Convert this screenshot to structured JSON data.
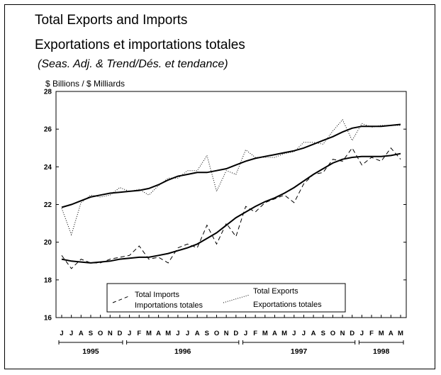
{
  "chart_data": {
    "type": "line",
    "title": "Total Exports and Imports",
    "subtitle": "Exportations et importations totales",
    "note": "(Seas. Adj. & Trend/Dés. et tendance)",
    "ylabel": "$ Billions / $ Milliards",
    "ylim": [
      16,
      28
    ],
    "yticks": [
      16,
      18,
      20,
      22,
      24,
      26,
      28
    ],
    "grid": false,
    "legend_position": "bottom-left",
    "month_labels": [
      "J",
      "J",
      "A",
      "S",
      "O",
      "N",
      "D",
      "J",
      "F",
      "M",
      "A",
      "M",
      "J",
      "J",
      "A",
      "S",
      "O",
      "N",
      "D",
      "J",
      "F",
      "M",
      "A",
      "M",
      "J",
      "J",
      "A",
      "S",
      "O",
      "N",
      "D",
      "J",
      "F",
      "M",
      "A",
      "M"
    ],
    "year_labels": [
      "1995",
      "1996",
      "1997",
      "1998"
    ],
    "year_ranges": [
      [
        0,
        6
      ],
      [
        7,
        18
      ],
      [
        19,
        30
      ],
      [
        31,
        35
      ]
    ],
    "series": [
      {
        "name": "Total Imports",
        "name_fr": "Importations totales",
        "style": "dashed",
        "kind": "actual",
        "values": [
          19.3,
          18.6,
          19.1,
          18.9,
          18.9,
          19.1,
          19.2,
          19.3,
          19.8,
          19.1,
          19.2,
          18.9,
          19.7,
          19.9,
          19.7,
          20.9,
          19.9,
          21.0,
          20.3,
          21.9,
          21.6,
          22.1,
          22.3,
          22.5,
          22.1,
          23.1,
          23.6,
          23.7,
          24.4,
          24.3,
          25.0,
          24.1,
          24.5,
          24.3,
          25.0,
          24.4
        ]
      },
      {
        "name": "",
        "style": "solid",
        "kind": "trend",
        "values": [
          19.1,
          19.0,
          18.95,
          18.9,
          18.95,
          19.0,
          19.1,
          19.15,
          19.2,
          19.2,
          19.3,
          19.4,
          19.55,
          19.7,
          19.9,
          20.2,
          20.5,
          20.9,
          21.3,
          21.6,
          21.9,
          22.15,
          22.35,
          22.6,
          22.9,
          23.25,
          23.6,
          23.9,
          24.2,
          24.4,
          24.5,
          24.55,
          24.55,
          24.55,
          24.6,
          24.7
        ]
      },
      {
        "name": "Total Exports",
        "name_fr": "Exportations totales",
        "style": "dotted",
        "kind": "actual",
        "values": [
          21.8,
          20.4,
          22.1,
          22.5,
          22.4,
          22.5,
          22.9,
          22.7,
          22.8,
          22.5,
          23.0,
          23.4,
          23.4,
          23.8,
          23.8,
          24.6,
          22.7,
          23.8,
          23.6,
          24.9,
          24.5,
          24.5,
          24.5,
          24.7,
          24.8,
          25.3,
          25.3,
          25.2,
          25.9,
          26.5,
          25.4,
          26.3,
          26.1,
          26.2,
          26.2,
          26.2
        ]
      },
      {
        "name": "",
        "style": "solid",
        "kind": "trend",
        "values": [
          21.85,
          22.0,
          22.2,
          22.4,
          22.5,
          22.6,
          22.65,
          22.7,
          22.75,
          22.85,
          23.05,
          23.3,
          23.5,
          23.6,
          23.7,
          23.7,
          23.8,
          23.9,
          24.1,
          24.3,
          24.45,
          24.55,
          24.65,
          24.75,
          24.85,
          25.0,
          25.2,
          25.4,
          25.6,
          25.85,
          26.05,
          26.15,
          26.15,
          26.15,
          26.2,
          26.25
        ]
      }
    ]
  }
}
